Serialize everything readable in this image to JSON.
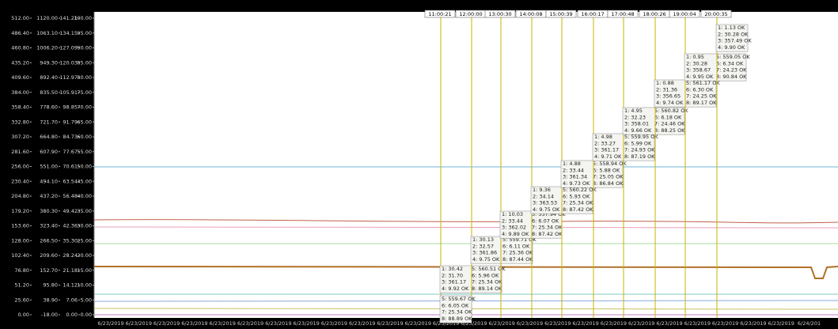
{
  "axes": [
    {
      "ticks": [
        "512.00",
        "486.40",
        "460.80",
        "435.20",
        "409.60",
        "384.00",
        "358.40",
        "332.80",
        "307.20",
        "281.60",
        "256.00",
        "230.40",
        "204.80",
        "179.20",
        "153.60",
        "128.00",
        "102.40",
        "76.80",
        "51.20",
        "25.60",
        "0.00"
      ]
    },
    {
      "ticks": [
        "1120.00",
        "1063.10",
        "1006.20",
        "949.30",
        "892.40",
        "835.50",
        "778.60",
        "721.70",
        "664.80",
        "607.90",
        "551.00",
        "494.10",
        "437.20",
        "380.30",
        "323.40",
        "266.50",
        "209.60",
        "152.70",
        "95.80",
        "38.90",
        "-18.00"
      ]
    },
    {
      "ticks": [
        "141.21",
        "134.15",
        "127.09",
        "120.03",
        "112.97",
        "105.91",
        "98.85",
        "91.79",
        "84.73",
        "77.67",
        "70.61",
        "63.54",
        "56.48",
        "49.42",
        "42.36",
        "35.30",
        "28.24",
        "21.18",
        "14.12",
        "7.06",
        "0.00"
      ]
    },
    {
      "ticks": [
        "100.00",
        "95.00",
        "90.00",
        "85.00",
        "80.00",
        "75.00",
        "70.00",
        "65.00",
        "60.00",
        "55.00",
        "50.00",
        "45.00",
        "40.00",
        "35.00",
        "30.00",
        "25.00",
        "20.00",
        "15.00",
        "10.00",
        "5.00",
        "0.00"
      ]
    }
  ],
  "cursors": [
    {
      "time": "11:00:21",
      "left": [
        "1: 30.42",
        "2: 31.70",
        "3: 361.17",
        "4: 9.92 OK"
      ],
      "right": [
        "5: 560.51 OK",
        "6: 5.96 OK",
        "7: 25.34 OK",
        "8: 89.14 OK"
      ]
    },
    {
      "time": "12:00:00",
      "left": [
        "1: 30.13",
        "2: 32.57",
        "3: 361.86",
        "4: 9.75 OK"
      ],
      "right": [
        "5: 559.71 OK",
        "6: 6.11 OK",
        "7: 25.36 OK",
        "8: 87.44 OK"
      ]
    },
    {
      "time": "13:00:30",
      "left": [
        "1: 10.03",
        "2: 33.44",
        "3: 362.02",
        "4: 9.89 OK"
      ],
      "right": [
        "5: 557.94 OK",
        "6: 6.07 OK",
        "7: 25.34 OK",
        "8: 87.42 OK"
      ]
    },
    {
      "time": "14:00:08",
      "left": [
        "1: 9.36",
        "2: 34.14",
        "3: 363.53",
        "4: 9.75 OK"
      ],
      "right": [
        "5: 560.22 OK",
        "6: 5.93 OK",
        "7: 25.34 OK",
        "8: 87.42 OK"
      ]
    },
    {
      "time": "15:00:39",
      "left": [
        "1: 4.88",
        "2: 33.44",
        "3: 361.34",
        "4: 9.73 OK"
      ],
      "right": [
        "5: 558.94 OK",
        "6: 5.88 OK",
        "7: 25.05 OK",
        "8: 86.84 OK"
      ]
    },
    {
      "time": "16:00:17",
      "left": [
        "1: 4.98",
        "2: 33.27",
        "3: 361.17",
        "4: 9.71 OK"
      ],
      "right": [
        "5: 559.95 OK",
        "6: 5.99 OK",
        "7: 24.93 OK",
        "8: 87.19 OK"
      ]
    },
    {
      "time": "17:00:48",
      "left": [
        "1: 4.95",
        "2: 32.23",
        "3: 358.01",
        "4: 9.66 OK"
      ],
      "right": [
        "5: 560.82 OK",
        "6: 6.18 OK",
        "7: 24.46 OK",
        "8: 88.25 OK"
      ]
    },
    {
      "time": "18:00:26",
      "left": [
        "1: 0.88",
        "2: 31.36",
        "3: 356.65",
        "4: 9.74 OK"
      ],
      "right": [
        "5: 561.17 OK",
        "6: 6.30 OK",
        "7: 24.25 OK",
        "8: 89.17 OK"
      ]
    },
    {
      "time": "19:00:04",
      "left": [
        "1: 0.95",
        "2: 30.28",
        "3: 358.67",
        "4: 9.95 OK"
      ],
      "right": [
        "5: 559.05 OK",
        "6: 6.34 OK",
        "7: 24.23 OK",
        "8: 90.84 OK"
      ]
    },
    {
      "time": "20:00:35",
      "left": [
        "1: 1.13 OK",
        "2: 30.28 OK",
        "3: 357.49 OK",
        "4: 9.90 OK"
      ],
      "right": []
    }
  ],
  "extra_readout": [
    "5: 559.67 OK",
    "6: 6.05 OK",
    "7: 25.34 OK",
    "8: 88.89 OK"
  ],
  "x_labels": [
    "6/23/2019",
    "6/23/2019",
    "6/23/2019",
    "6/23/2019",
    "6/23/2019",
    "6/23/2019",
    "6/23/2019",
    "6/23/2019",
    "6/23/2019",
    "6/23/2019",
    "6/23/2019",
    "6/23/2019",
    "6/23/2019",
    "6/23/2019",
    "6/23/2019",
    "6/23/2019",
    "6/23/2019",
    "6/23/2019",
    "6/23/2019",
    "6/23/2019",
    "6/23/2019",
    "6/23/2019",
    "6/23/2019",
    "6/23/2019",
    "6/23/2019",
    "6/24/201"
  ]
}
